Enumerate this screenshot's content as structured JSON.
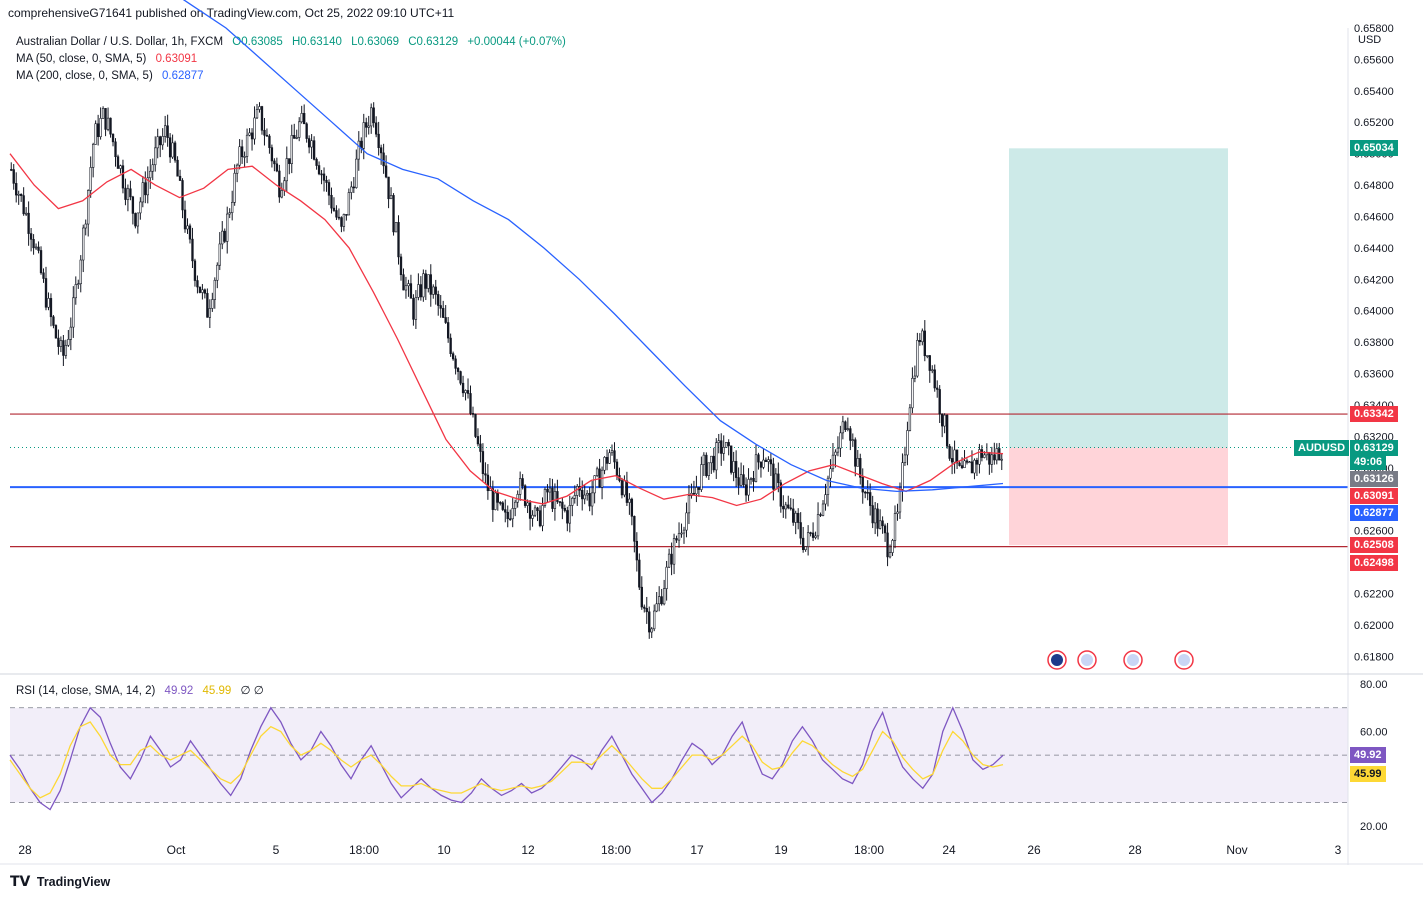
{
  "header": {
    "publisher": "comprehensiveG71641 published on TradingView.com, Oct 25, 2022 09:10 UTC+11",
    "symbol_line": "Australian Dollar / U.S. Dollar, 1h, FXCM",
    "ohlc": {
      "open": "O0.63085",
      "high": "H0.63140",
      "low": "L0.63069",
      "close": "C0.63129",
      "change": "+0.00044 (+0.07%)"
    },
    "ma50": {
      "label": "MA (50, close, 0, SMA, 5)",
      "value": "0.63091"
    },
    "ma200": {
      "label": "MA (200, close, 0, SMA, 5)",
      "value": "0.62877"
    },
    "currency": "USD"
  },
  "footer": {
    "brand": "TradingView"
  },
  "colors": {
    "up": "#26a69a",
    "down": "#ef5350",
    "candle": "#131722",
    "ma50": "#f23645",
    "ma200": "#2962ff",
    "rsi": "#7e57c2",
    "rsi_ma": "#fdd835",
    "target_zone": "#b2dfdb",
    "stop_zone": "#ffcdd2",
    "level_line": "#b22833"
  },
  "chart_data": {
    "type": "candlestick",
    "symbol": "AUDUSD",
    "timeframe": "1h",
    "ylim": [
      0.617,
      0.658
    ],
    "y_ticks": [
      "0.61800",
      "0.62000",
      "0.62200",
      "0.62400",
      "0.62600",
      "0.62800",
      "0.63000",
      "0.63200",
      "0.63400",
      "0.63600",
      "0.63800",
      "0.64000",
      "0.64200",
      "0.64400",
      "0.64600",
      "0.64800",
      "0.65000",
      "0.65200",
      "0.65400",
      "0.65600",
      "0.65800"
    ],
    "x_ticks": [
      "28",
      "Oct",
      "5",
      "18:00",
      "10",
      "12",
      "18:00",
      "17",
      "19",
      "18:00",
      "24",
      "26",
      "28",
      "Nov",
      "3"
    ],
    "price_path": [
      0.649,
      0.647,
      0.645,
      0.642,
      0.639,
      0.637,
      0.64,
      0.645,
      0.651,
      0.6525,
      0.6505,
      0.648,
      0.646,
      0.648,
      0.65,
      0.6515,
      0.649,
      0.645,
      0.642,
      0.64,
      0.643,
      0.646,
      0.6495,
      0.651,
      0.6525,
      0.6505,
      0.648,
      0.65,
      0.652,
      0.651,
      0.649,
      0.647,
      0.645,
      0.648,
      0.651,
      0.653,
      0.65,
      0.646,
      0.642,
      0.64,
      0.642,
      0.641,
      0.639,
      0.637,
      0.635,
      0.632,
      0.629,
      0.6275,
      0.6265,
      0.629,
      0.628,
      0.6265,
      0.6285,
      0.6275,
      0.627,
      0.629,
      0.628,
      0.6295,
      0.631,
      0.6295,
      0.627,
      0.622,
      0.62,
      0.622,
      0.6245,
      0.6265,
      0.628,
      0.63,
      0.6305,
      0.6315,
      0.63,
      0.6285,
      0.63,
      0.631,
      0.629,
      0.6275,
      0.6265,
      0.625,
      0.6265,
      0.629,
      0.631,
      0.6335,
      0.63,
      0.628,
      0.6265,
      0.625,
      0.627,
      0.634,
      0.6385,
      0.637,
      0.634,
      0.631,
      0.6295,
      0.63,
      0.631,
      0.6305,
      0.6313
    ],
    "ma50_path": [
      0.65,
      0.648,
      0.6465,
      0.647,
      0.6482,
      0.649,
      0.648,
      0.6472,
      0.6478,
      0.649,
      0.6492,
      0.648,
      0.647,
      0.6458,
      0.644,
      0.6412,
      0.6382,
      0.635,
      0.6318,
      0.6298,
      0.6285,
      0.628,
      0.6277,
      0.6282,
      0.6292,
      0.6295,
      0.6287,
      0.628,
      0.6283,
      0.6281,
      0.6276,
      0.628,
      0.629,
      0.6298,
      0.6302,
      0.6296,
      0.629,
      0.6285,
      0.6292,
      0.6303,
      0.631,
      0.6309
    ],
    "ma200_path": [
      0.6625,
      0.661,
      0.6595,
      0.658,
      0.656,
      0.654,
      0.652,
      0.65,
      0.649,
      0.6484,
      0.647,
      0.6458,
      0.644,
      0.642,
      0.6398,
      0.6375,
      0.6352,
      0.633,
      0.6315,
      0.6302,
      0.6292,
      0.6287,
      0.6285,
      0.6286,
      0.6288,
      0.629
    ],
    "horizontal_levels": [
      {
        "price": 0.63342,
        "label": "0.63342",
        "color": "#b22833"
      },
      {
        "price": 0.62877,
        "label": "",
        "color": "#2962ff"
      },
      {
        "price": 0.62498,
        "label": "0.62498",
        "color": "#b22833"
      }
    ],
    "position": {
      "entry": 0.63129,
      "target": 0.65034,
      "stop": 0.62508
    },
    "price_tags": [
      {
        "label": "0.65034",
        "price": 0.65034,
        "color": "#089981"
      },
      {
        "label": "0.63342",
        "price": 0.63342,
        "color": "#f23645"
      },
      {
        "label": "0.63129",
        "price": 0.63129,
        "color": "#089981"
      },
      {
        "label": "49:06",
        "price": 0.6304,
        "color": "#089981"
      },
      {
        "label": "0.63126",
        "price": 0.6293,
        "color": "#787b86"
      },
      {
        "label": "0.63091",
        "price": 0.6282,
        "color": "#f23645"
      },
      {
        "label": "0.62877",
        "price": 0.62715,
        "color": "#2962ff"
      },
      {
        "label": "0.62508",
        "price": 0.62508,
        "color": "#f23645"
      },
      {
        "label": "0.62498",
        "price": 0.62395,
        "color": "#f23645"
      }
    ],
    "symbol_tag": "AUDUSD",
    "rsi": {
      "label": "RSI (14, close, SMA, 14, 2)",
      "value": "49.92",
      "ma_value": "45.99",
      "extra": "∅ ∅",
      "ylim": [
        15,
        83
      ],
      "y_ticks": [
        "20.00",
        "60.00",
        "80.00"
      ],
      "upper_band": 70,
      "lower_band": 30,
      "mid": 50,
      "path": [
        50,
        44,
        36,
        30,
        27,
        35,
        48,
        62,
        70,
        66,
        55,
        45,
        40,
        48,
        58,
        52,
        45,
        48,
        56,
        50,
        44,
        38,
        33,
        40,
        52,
        62,
        70,
        64,
        55,
        48,
        52,
        60,
        54,
        46,
        40,
        48,
        54,
        46,
        38,
        32,
        36,
        40,
        36,
        33,
        31,
        30,
        34,
        40,
        36,
        33,
        35,
        38,
        34,
        36,
        40,
        45,
        50,
        48,
        44,
        52,
        58,
        50,
        42,
        36,
        30,
        34,
        40,
        48,
        55,
        52,
        46,
        50,
        58,
        64,
        52,
        42,
        40,
        46,
        56,
        62,
        56,
        48,
        44,
        40,
        38,
        46,
        60,
        68,
        55,
        45,
        40,
        36,
        42,
        60,
        70,
        60,
        48,
        44,
        46,
        49.92
      ],
      "ma_path": [
        48,
        42,
        36,
        32,
        34,
        42,
        54,
        62,
        64,
        58,
        50,
        46,
        46,
        52,
        54,
        50,
        48,
        50,
        52,
        48,
        44,
        40,
        38,
        42,
        50,
        58,
        62,
        60,
        54,
        50,
        52,
        55,
        52,
        48,
        45,
        48,
        50,
        46,
        41,
        37,
        37,
        38,
        36,
        35,
        34,
        34,
        36,
        38,
        36,
        35,
        36,
        37,
        36,
        37,
        39,
        43,
        47,
        47,
        46,
        50,
        54,
        50,
        45,
        40,
        36,
        36,
        40,
        45,
        50,
        50,
        48,
        50,
        54,
        58,
        54,
        47,
        44,
        45,
        51,
        56,
        54,
        50,
        46,
        43,
        41,
        44,
        52,
        60,
        56,
        49,
        44,
        40,
        42,
        52,
        60,
        56,
        50,
        46,
        45,
        45.99
      ]
    },
    "event_icons": [
      "au-flag-icon",
      "us-flag-icon",
      "us-flag-icon",
      "us-flag-icon"
    ]
  }
}
